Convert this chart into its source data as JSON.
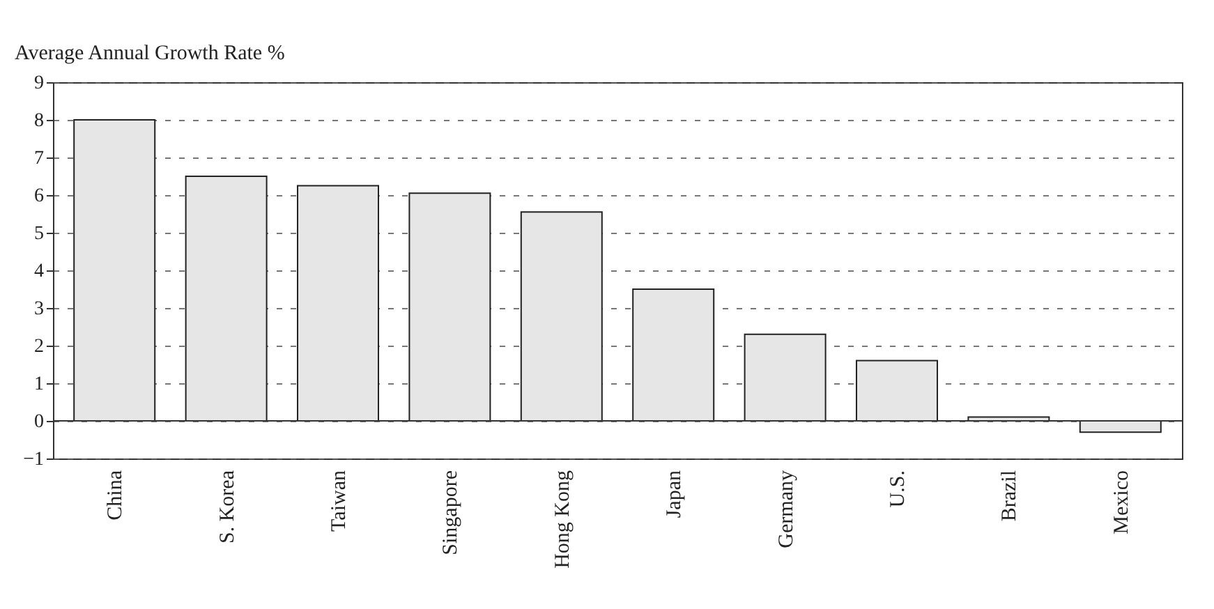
{
  "chart_data": {
    "type": "bar",
    "ylabel": "Average Annual Growth Rate %",
    "categories": [
      "China",
      "S. Korea",
      "Taiwan",
      "Singapore",
      "Hong Kong",
      "Japan",
      "Germany",
      "U.S.",
      "Brazil",
      "Mexico"
    ],
    "values": [
      8.0,
      6.5,
      6.25,
      6.05,
      5.55,
      3.5,
      2.3,
      1.6,
      0.1,
      -0.3
    ],
    "color": "#e6e6e6",
    "ylim": [
      -1,
      9
    ],
    "yticks": [
      -1,
      0,
      1,
      2,
      3,
      4,
      5,
      6,
      7,
      8,
      9
    ],
    "grid": "y",
    "line_style": "dashed",
    "ref_lines": [
      {
        "axis": "y",
        "value": 0,
        "color": "#333333",
        "line_style": "solid"
      }
    ]
  }
}
